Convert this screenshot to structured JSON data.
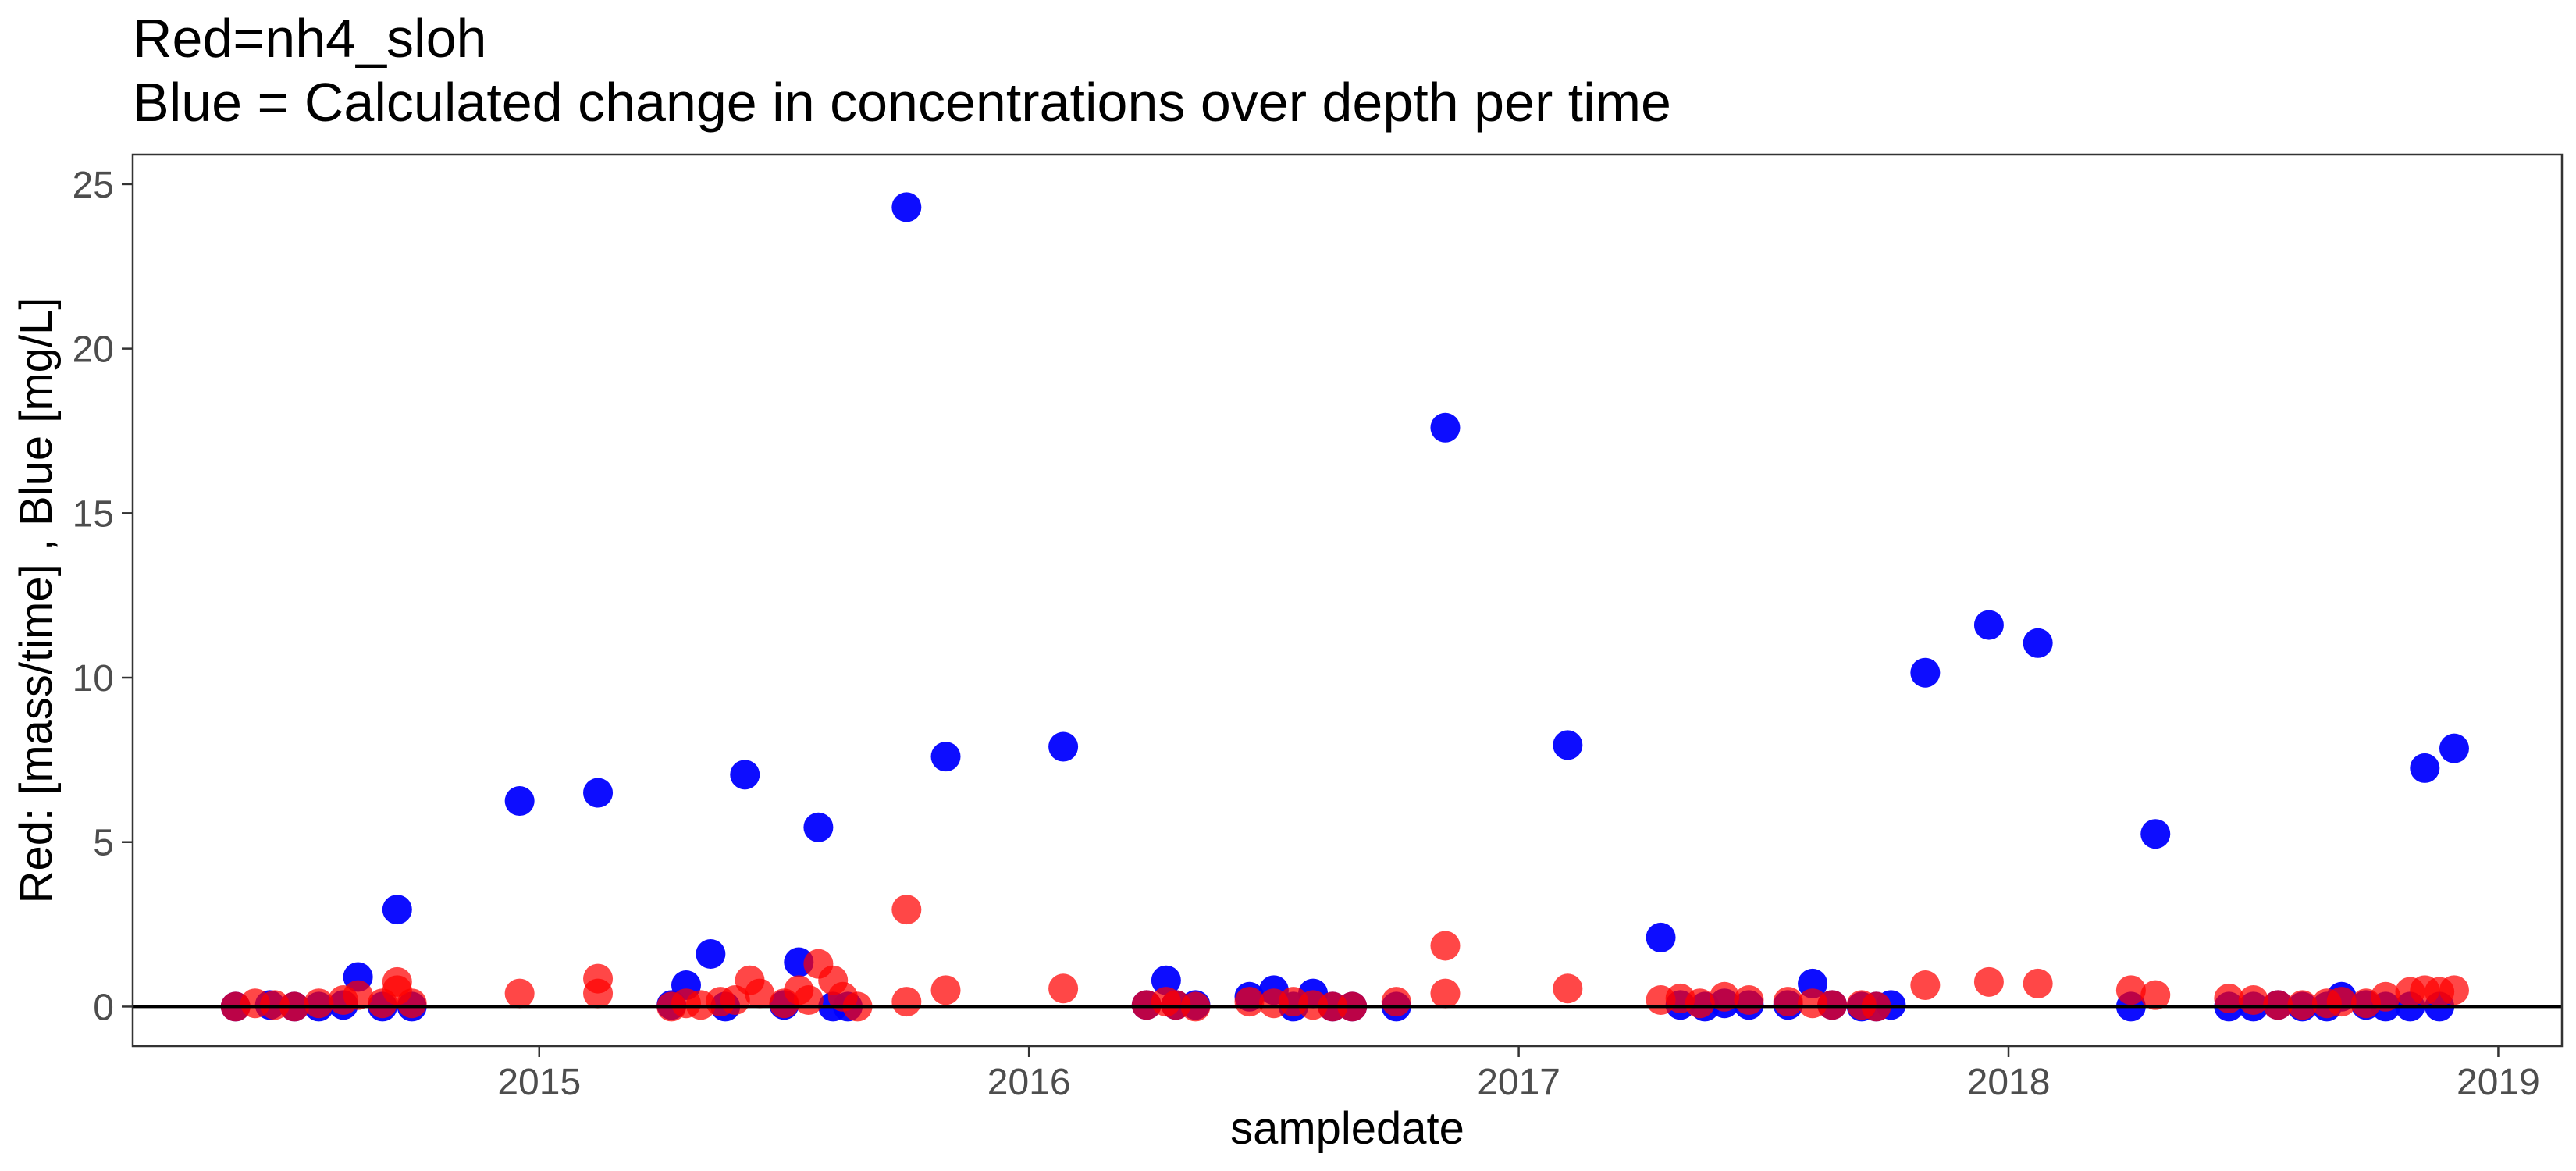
{
  "chart_data": {
    "type": "scatter",
    "title_line1": "Red=nh4_sloh",
    "title_line2": "Blue = Calculated change in concentrations over depth per time",
    "xlabel": "sampledate",
    "ylabel": "Red: [mass/time] , Blue [mg/L]",
    "xlim": [
      2014.17,
      2019.13
    ],
    "ylim": [
      -1.2,
      25.9
    ],
    "x_ticks": [
      2015,
      2016,
      2017,
      2018,
      2019
    ],
    "x_tick_labels": [
      "2015",
      "2016",
      "2017",
      "2018",
      "2019"
    ],
    "y_ticks": [
      0,
      5,
      10,
      15,
      20,
      25
    ],
    "y_tick_labels": [
      "0",
      "5",
      "10",
      "15",
      "20",
      "25"
    ],
    "reference_line_y": 0,
    "grid": false,
    "series": [
      {
        "color": "#0000FF",
        "x": [
          2014.38,
          2014.45,
          2014.5,
          2014.55,
          2014.6,
          2014.63,
          2014.68,
          2014.71,
          2014.74,
          2014.96,
          2015.12,
          2015.27,
          2015.3,
          2015.35,
          2015.38,
          2015.42,
          2015.5,
          2015.53,
          2015.57,
          2015.6,
          2015.63,
          2015.75,
          2015.83,
          2016.07,
          2016.24,
          2016.28,
          2016.3,
          2016.34,
          2016.45,
          2016.5,
          2016.54,
          2016.58,
          2016.62,
          2016.66,
          2016.75,
          2016.85,
          2017.1,
          2017.29,
          2017.33,
          2017.38,
          2017.42,
          2017.47,
          2017.55,
          2017.6,
          2017.64,
          2017.7,
          2017.73,
          2017.76,
          2017.83,
          2017.96,
          2018.06,
          2018.25,
          2018.3,
          2018.45,
          2018.5,
          2018.55,
          2018.6,
          2018.65,
          2018.68,
          2018.73,
          2018.77,
          2018.82,
          2018.85,
          2018.88,
          2018.91
        ],
        "y": [
          0.0,
          0.05,
          0.0,
          0.0,
          0.05,
          0.9,
          0.0,
          2.95,
          0.0,
          6.25,
          6.5,
          0.05,
          0.65,
          1.6,
          0.0,
          7.05,
          0.05,
          1.35,
          5.45,
          0.0,
          0.0,
          24.3,
          7.6,
          7.9,
          0.05,
          0.8,
          0.05,
          0.05,
          0.3,
          0.5,
          0.0,
          0.4,
          0.0,
          0.0,
          0.0,
          17.6,
          7.95,
          2.1,
          0.05,
          0.0,
          0.1,
          0.05,
          0.05,
          0.7,
          0.05,
          0.0,
          0.0,
          0.05,
          10.15,
          11.6,
          11.05,
          0.0,
          5.25,
          0.0,
          0.0,
          0.05,
          0.0,
          0.0,
          0.3,
          0.05,
          0.0,
          0.0,
          7.25,
          0.0,
          7.85
        ]
      },
      {
        "color": "#FF0000",
        "x": [
          2014.38,
          2014.42,
          2014.46,
          2014.5,
          2014.55,
          2014.6,
          2014.63,
          2014.68,
          2014.71,
          2014.71,
          2014.74,
          2014.96,
          2015.12,
          2015.12,
          2015.27,
          2015.3,
          2015.33,
          2015.37,
          2015.4,
          2015.43,
          2015.45,
          2015.5,
          2015.53,
          2015.55,
          2015.57,
          2015.6,
          2015.62,
          2015.65,
          2015.75,
          2015.75,
          2015.83,
          2016.07,
          2016.24,
          2016.28,
          2016.3,
          2016.34,
          2016.45,
          2016.5,
          2016.54,
          2016.58,
          2016.62,
          2016.66,
          2016.75,
          2016.85,
          2016.85,
          2017.1,
          2017.29,
          2017.33,
          2017.37,
          2017.42,
          2017.47,
          2017.55,
          2017.6,
          2017.64,
          2017.7,
          2017.73,
          2017.83,
          2017.96,
          2018.06,
          2018.25,
          2018.3,
          2018.45,
          2018.5,
          2018.55,
          2018.6,
          2018.65,
          2018.68,
          2018.73,
          2018.77,
          2018.82,
          2018.85,
          2018.88,
          2018.91
        ],
        "y": [
          0.0,
          0.1,
          0.05,
          0.0,
          0.1,
          0.2,
          0.35,
          0.1,
          0.75,
          0.5,
          0.1,
          0.4,
          0.85,
          0.4,
          0.0,
          0.1,
          0.05,
          0.15,
          0.2,
          0.8,
          0.4,
          0.1,
          0.5,
          0.2,
          1.3,
          0.8,
          0.3,
          0.0,
          2.95,
          0.15,
          0.5,
          0.55,
          0.05,
          0.15,
          0.05,
          0.0,
          0.15,
          0.1,
          0.15,
          0.05,
          0.0,
          0.0,
          0.15,
          1.85,
          0.4,
          0.55,
          0.2,
          0.25,
          0.1,
          0.3,
          0.2,
          0.15,
          0.1,
          0.05,
          0.05,
          0.0,
          0.65,
          0.75,
          0.7,
          0.5,
          0.35,
          0.25,
          0.2,
          0.05,
          0.05,
          0.1,
          0.15,
          0.1,
          0.3,
          0.45,
          0.5,
          0.45,
          0.5
        ]
      }
    ]
  }
}
